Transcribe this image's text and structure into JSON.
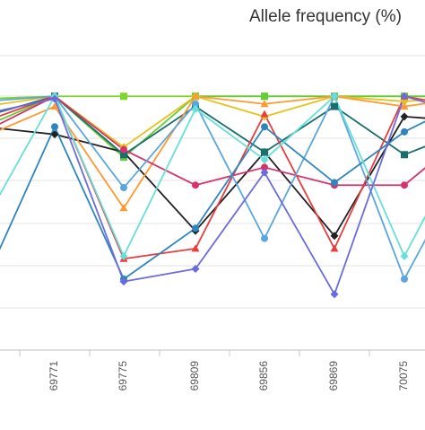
{
  "chart_data": {
    "type": "line",
    "title": "Allele frequency (%)",
    "categories": [
      "",
      "69771",
      "69775",
      "69809",
      "69856",
      "69869",
      "70075",
      ""
    ],
    "ylim": [
      0,
      110
    ],
    "grid": true,
    "series": [
      {
        "color": "#7cd62c",
        "marker": "square",
        "values": [
          99,
          100,
          100,
          100,
          100,
          100,
          100,
          100
        ]
      },
      {
        "color": "#66cc33",
        "marker": "square",
        "values": [
          88,
          100,
          76,
          100,
          100,
          100,
          100,
          100
        ]
      },
      {
        "color": "#e6c21a",
        "marker": "diamond",
        "values": [
          96,
          100,
          80,
          100,
          92,
          100,
          98,
          100
        ]
      },
      {
        "color": "#222222",
        "marker": "diamond",
        "values": [
          88,
          85,
          78,
          47,
          78,
          45,
          92,
          90
        ]
      },
      {
        "color": "#196f6e",
        "marker": "square",
        "values": [
          92,
          100,
          77,
          96,
          78,
          96,
          77,
          88
        ]
      },
      {
        "color": "#e83e3e",
        "marker": "triangle",
        "values": [
          90,
          100,
          36,
          40,
          93,
          40,
          100,
          95
        ]
      },
      {
        "color": "#ff9933",
        "marker": "triangle",
        "values": [
          84,
          96,
          56,
          100,
          97,
          100,
          96,
          100
        ]
      },
      {
        "color": "#d6336c",
        "marker": "circle",
        "values": [
          86,
          100,
          79,
          65,
          72,
          65,
          65,
          88
        ]
      },
      {
        "color": "#5aa7e0",
        "marker": "circle",
        "values": [
          98,
          100,
          64,
          97,
          44,
          100,
          28,
          80
        ]
      },
      {
        "color": "#2e86c1",
        "marker": "circle",
        "values": [
          26,
          88,
          28,
          48,
          88,
          66,
          86,
          100
        ]
      },
      {
        "color": "#66e0d6",
        "marker": "diamond",
        "values": [
          50,
          100,
          37,
          95,
          75,
          100,
          37,
          90
        ]
      },
      {
        "color": "#6b6be0",
        "marker": "diamond",
        "values": [
          93,
          99,
          27,
          32,
          70,
          22,
          100,
          92
        ]
      }
    ]
  }
}
